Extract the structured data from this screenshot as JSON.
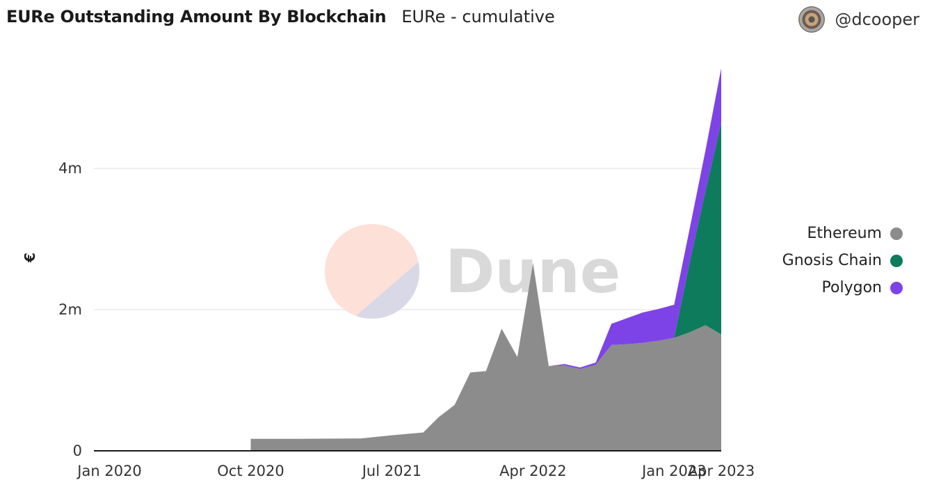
{
  "header": {
    "title": "EURe Outstanding Amount By Blockchain",
    "subtitle": "EURe - cumulative"
  },
  "author": {
    "handle": "@dcooper"
  },
  "watermark": {
    "text": "Dune"
  },
  "colors": {
    "ethereum": "#8c8c8c",
    "gnosis": "#0e7b5c",
    "polygon": "#7d43e6",
    "grid": "#e9e9e9",
    "axis": "#1a1a1a"
  },
  "chart_data": {
    "type": "area",
    "stacked": true,
    "ylabel": "€",
    "xlabel": "",
    "ylim": [
      0,
      5500000
    ],
    "x_ticks": [
      "Jan 2020",
      "Oct 2020",
      "Jul 2021",
      "Apr 2022",
      "Jan 2023",
      "Apr 2023"
    ],
    "y_ticks": [
      {
        "value": 0,
        "label": "0"
      },
      {
        "value": 2000000,
        "label": "2m"
      },
      {
        "value": 4000000,
        "label": "4m"
      }
    ],
    "legend": {
      "position": "right"
    },
    "x": [
      "2020-01",
      "2020-10",
      "2020-10",
      "2021-01",
      "2021-05",
      "2021-07",
      "2021-09",
      "2021-10",
      "2021-11",
      "2021-12",
      "2022-01",
      "2022-02",
      "2022-03",
      "2022-04",
      "2022-05",
      "2022-06",
      "2022-07",
      "2022-08",
      "2022-09",
      "2022-10",
      "2022-11",
      "2022-12",
      "2023-01",
      "2023-02",
      "2023-03",
      "2023-04"
    ],
    "series": [
      {
        "name": "Ethereum",
        "values": [
          0,
          0,
          170000,
          170000,
          175000,
          220000,
          260000,
          480000,
          650000,
          1110000,
          1130000,
          1730000,
          1330000,
          2660000,
          1200000,
          1210000,
          1160000,
          1220000,
          1500000,
          1510000,
          1530000,
          1560000,
          1600000,
          1680000,
          1780000,
          1650000
        ]
      },
      {
        "name": "Gnosis Chain",
        "values": [
          0,
          0,
          0,
          0,
          0,
          0,
          0,
          0,
          0,
          0,
          0,
          0,
          0,
          0,
          0,
          0,
          0,
          0,
          0,
          0,
          0,
          0,
          0,
          1000000,
          1900000,
          3000000
        ]
      },
      {
        "name": "Polygon",
        "values": [
          0,
          0,
          0,
          0,
          0,
          0,
          0,
          0,
          0,
          0,
          0,
          0,
          0,
          0,
          0,
          20000,
          20000,
          30000,
          300000,
          370000,
          430000,
          450000,
          470000,
          480000,
          580000,
          770000
        ]
      }
    ]
  }
}
